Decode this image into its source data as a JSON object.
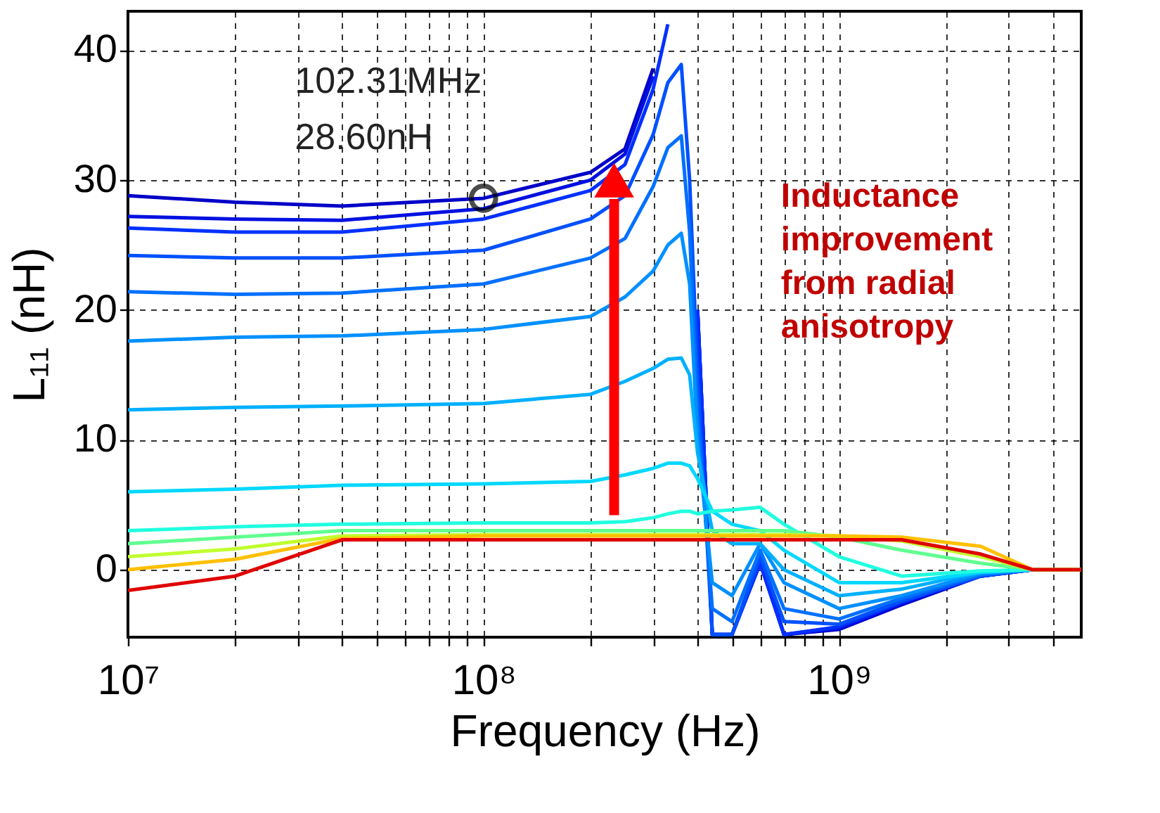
{
  "chart_data": {
    "type": "line",
    "xlabel": "Frequency (Hz)",
    "ylabel": "L₁₁ (nH)",
    "log": "x",
    "grid": true,
    "legend": false,
    "marker": "none",
    "line_style": "solid",
    "x": [
      10000000.0,
      20000000.0,
      40000000.0,
      100000000.0,
      200000000.0,
      250000000.0,
      300000000.0,
      330000000.0,
      360000000.0,
      380000000.0,
      400000000.0,
      440000000.0,
      500000000.0,
      600000000.0,
      700000000.0,
      1000000000.0,
      1500000000.0,
      2500000000.0,
      3500000000.0,
      4800000000.0
    ],
    "xlim": [
      10000000.0,
      4800000000.0
    ],
    "ylim": [
      -5.2,
      43
    ],
    "xticks": [
      {
        "value": 10000000.0,
        "label": "10⁷"
      },
      {
        "value": 20000000.0,
        "label": null
      },
      {
        "value": 30000000.0,
        "label": null
      },
      {
        "value": 40000000.0,
        "label": null
      },
      {
        "value": 50000000.0,
        "label": null
      },
      {
        "value": 60000000.0,
        "label": null
      },
      {
        "value": 70000000.0,
        "label": null
      },
      {
        "value": 80000000.0,
        "label": null
      },
      {
        "value": 90000000.0,
        "label": null
      },
      {
        "value": 100000000.0,
        "label": "10⁸"
      },
      {
        "value": 200000000.0,
        "label": null
      },
      {
        "value": 300000000.0,
        "label": null
      },
      {
        "value": 400000000.0,
        "label": null
      },
      {
        "value": 500000000.0,
        "label": null
      },
      {
        "value": 600000000.0,
        "label": null
      },
      {
        "value": 700000000.0,
        "label": null
      },
      {
        "value": 800000000.0,
        "label": null
      },
      {
        "value": 900000000.0,
        "label": null
      },
      {
        "value": 1000000000.0,
        "label": "10⁹"
      },
      {
        "value": 2000000000.0,
        "label": null
      },
      {
        "value": 3000000000.0,
        "label": null
      },
      {
        "value": 4000000000.0,
        "label": null
      }
    ],
    "yticks": [
      0,
      10,
      20,
      30,
      40
    ],
    "series": [
      {
        "color": "#0000c8",
        "values": [
          28.8,
          28.3,
          28.0,
          28.6,
          30.6,
          32.4,
          38.6,
          null,
          null,
          null,
          20,
          -5,
          -5,
          1,
          -5,
          -4.6,
          -2.7,
          -0.5,
          0,
          0
        ]
      },
      {
        "color": "#0010e0",
        "values": [
          27.2,
          27.0,
          26.9,
          27.8,
          30.0,
          32.0,
          38.0,
          null,
          null,
          null,
          20,
          -5,
          -5,
          0.5,
          -5,
          -4.5,
          -2.6,
          -0.5,
          0,
          0
        ]
      },
      {
        "color": "#0030ff",
        "values": [
          26.3,
          26.0,
          26.0,
          27.0,
          29.2,
          31.2,
          37.0,
          42,
          null,
          null,
          20,
          -5,
          -5,
          0.5,
          -5,
          -4.4,
          -2.5,
          -0.5,
          0,
          0
        ]
      },
      {
        "color": "#0050ff",
        "values": [
          24.2,
          24.0,
          24.0,
          24.6,
          27.0,
          28.8,
          33.5,
          37.5,
          38.9,
          30,
          15,
          -5,
          -5,
          1,
          -4,
          -4.2,
          -2.4,
          -0.5,
          0,
          0
        ]
      },
      {
        "color": "#0070ff",
        "values": [
          21.4,
          21.2,
          21.3,
          22.0,
          24.0,
          25.5,
          29.5,
          32.5,
          33.4,
          26,
          12,
          -3,
          -4,
          1.5,
          -3,
          -3.8,
          -2.2,
          -0.4,
          0,
          0
        ]
      },
      {
        "color": "#0090ff",
        "values": [
          17.6,
          17.9,
          18.0,
          18.5,
          19.5,
          21,
          23,
          25,
          25.9,
          22,
          10,
          -1,
          -2,
          2,
          -1,
          -3,
          -2,
          -0.3,
          0,
          0
        ]
      },
      {
        "color": "#00b0ff",
        "values": [
          12.3,
          12.5,
          12.6,
          12.8,
          13.5,
          14.5,
          15.5,
          16.2,
          16.3,
          15,
          9,
          3,
          2,
          2,
          0,
          -2,
          -1.5,
          -0.2,
          0,
          0
        ]
      },
      {
        "color": "#00d8ff",
        "values": [
          6.0,
          6.2,
          6.5,
          6.6,
          6.8,
          7.3,
          7.8,
          8.2,
          8.2,
          8,
          7,
          4.5,
          3.5,
          3,
          1.5,
          -1,
          -1,
          -0.2,
          0,
          0
        ]
      },
      {
        "color": "#20ffe0",
        "values": [
          3.0,
          3.3,
          3.5,
          3.6,
          3.6,
          3.7,
          4.0,
          4.3,
          4.5,
          4.5,
          4.3,
          4.5,
          4.6,
          4.8,
          3.5,
          1,
          -0.5,
          -0.1,
          0,
          0
        ]
      },
      {
        "color": "#60ff90",
        "values": [
          2.0,
          2.5,
          3.0,
          3.0,
          3.0,
          3.0,
          3.0,
          3.0,
          3.0,
          3.0,
          3.0,
          3.0,
          3.0,
          3.0,
          3.0,
          2.5,
          1.5,
          0.5,
          0,
          0
        ]
      },
      {
        "color": "#c0ff30",
        "values": [
          1.0,
          1.6,
          2.6,
          2.7,
          2.7,
          2.7,
          2.7,
          2.7,
          2.7,
          2.7,
          2.7,
          2.7,
          2.7,
          2.7,
          2.7,
          2.6,
          2.2,
          1,
          0,
          0
        ]
      },
      {
        "color": "#ffc000",
        "values": [
          0,
          0.8,
          2.4,
          2.6,
          2.6,
          2.6,
          2.6,
          2.6,
          2.6,
          2.6,
          2.6,
          2.6,
          2.6,
          2.6,
          2.6,
          2.6,
          2.5,
          1.8,
          0,
          0
        ]
      },
      {
        "color": "#e00000",
        "values": [
          -1.6,
          -0.5,
          2.3,
          2.3,
          2.3,
          2.3,
          2.3,
          2.3,
          2.3,
          2.3,
          2.3,
          2.3,
          2.3,
          2.3,
          2.3,
          2.3,
          2.3,
          1.2,
          0,
          0
        ]
      },
      {
        "type": "scatter",
        "marker": "circle",
        "color": "#000000",
        "values": [
          null,
          null,
          null,
          28.6,
          null,
          null,
          null,
          null,
          null,
          null,
          null,
          null,
          null,
          null,
          null,
          null,
          null,
          null,
          null,
          null
        ]
      }
    ],
    "annotations": [
      "102.31MHz",
      "28.60nH",
      "Inductance improvement from radial anisotropy"
    ]
  }
}
